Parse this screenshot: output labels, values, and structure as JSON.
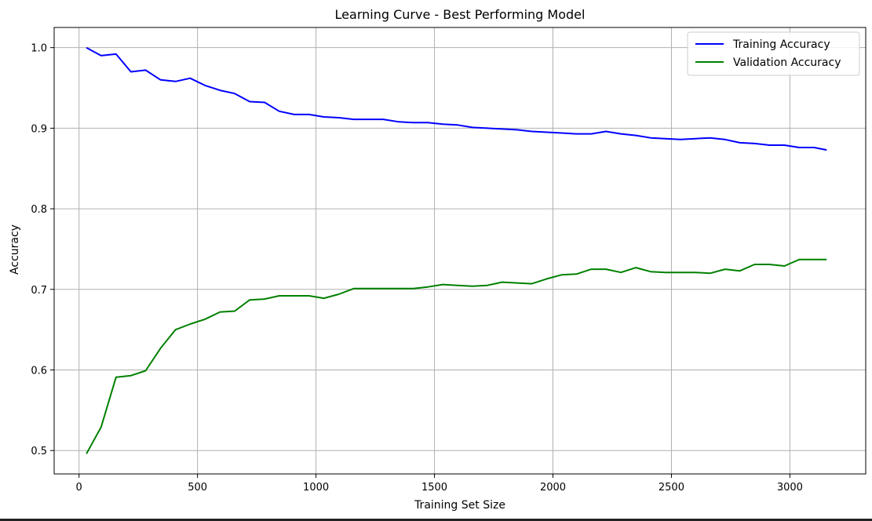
{
  "chart_data": {
    "type": "line",
    "title": "Learning Curve - Best Performing Model",
    "xlabel": "Training Set Size",
    "ylabel": "Accuracy",
    "xlim": [
      -105,
      3320
    ],
    "ylim": [
      0.471,
      1.025
    ],
    "grid": true,
    "legend_position": "top-right",
    "xticks": [
      0,
      500,
      1000,
      1500,
      2000,
      2500,
      3000
    ],
    "xtick_labels": [
      "0",
      "500",
      "1000",
      "1500",
      "2000",
      "2500",
      "3000"
    ],
    "yticks": [
      0.5,
      0.6,
      0.7,
      0.8,
      0.9,
      1.0
    ],
    "ytick_labels": [
      "0.5",
      "0.6",
      "0.7",
      "0.8",
      "0.9",
      "1.0"
    ],
    "x": [
      31,
      93,
      156,
      219,
      281,
      344,
      407,
      469,
      532,
      595,
      657,
      720,
      783,
      845,
      908,
      971,
      1033,
      1096,
      1159,
      1222,
      1284,
      1347,
      1410,
      1472,
      1535,
      1598,
      1660,
      1723,
      1786,
      1848,
      1911,
      1974,
      2036,
      2099,
      2162,
      2224,
      2287,
      2350,
      2412,
      2475,
      2538,
      2601,
      2663,
      2726,
      2789,
      2851,
      2914,
      2977,
      3039,
      3102,
      3155
    ],
    "series": [
      {
        "name": "Training Accuracy",
        "color": "#0000ff",
        "values": [
          1.0,
          0.99,
          0.992,
          0.97,
          0.972,
          0.96,
          0.958,
          0.962,
          0.953,
          0.947,
          0.943,
          0.933,
          0.932,
          0.921,
          0.917,
          0.917,
          0.914,
          0.913,
          0.911,
          0.911,
          0.911,
          0.908,
          0.907,
          0.907,
          0.905,
          0.904,
          0.901,
          0.9,
          0.899,
          0.898,
          0.896,
          0.895,
          0.894,
          0.893,
          0.893,
          0.896,
          0.893,
          0.891,
          0.888,
          0.887,
          0.886,
          0.887,
          0.888,
          0.886,
          0.882,
          0.881,
          0.879,
          0.879,
          0.876,
          0.876,
          0.873
        ]
      },
      {
        "name": "Validation Accuracy",
        "color": "#008000",
        "values": [
          0.496,
          0.529,
          0.591,
          0.593,
          0.599,
          0.627,
          0.65,
          0.657,
          0.663,
          0.672,
          0.673,
          0.687,
          0.688,
          0.692,
          0.692,
          0.692,
          0.689,
          0.694,
          0.701,
          0.701,
          0.701,
          0.701,
          0.701,
          0.703,
          0.706,
          0.705,
          0.704,
          0.705,
          0.709,
          0.708,
          0.707,
          0.713,
          0.718,
          0.719,
          0.725,
          0.725,
          0.721,
          0.727,
          0.722,
          0.721,
          0.721,
          0.721,
          0.72,
          0.725,
          0.723,
          0.731,
          0.731,
          0.729,
          0.737,
          0.737,
          0.737
        ]
      }
    ]
  }
}
